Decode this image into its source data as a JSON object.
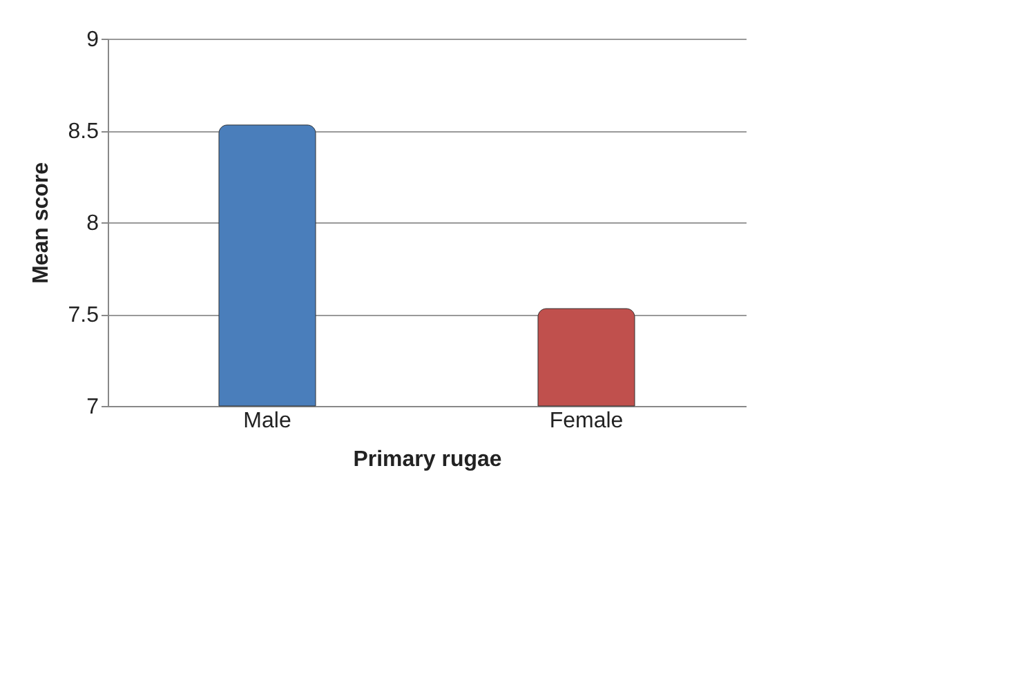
{
  "chart_data": {
    "type": "bar",
    "xlabel": "Primary rugae",
    "ylabel": "Mean score",
    "categories": [
      "Male",
      "Female"
    ],
    "values": [
      8.53,
      7.53
    ],
    "colors": [
      "#4a7ebb",
      "#c0504d"
    ],
    "ylim": [
      7,
      9
    ],
    "yticks": [
      7,
      7.5,
      8,
      8.5,
      9
    ],
    "grid": "y"
  }
}
